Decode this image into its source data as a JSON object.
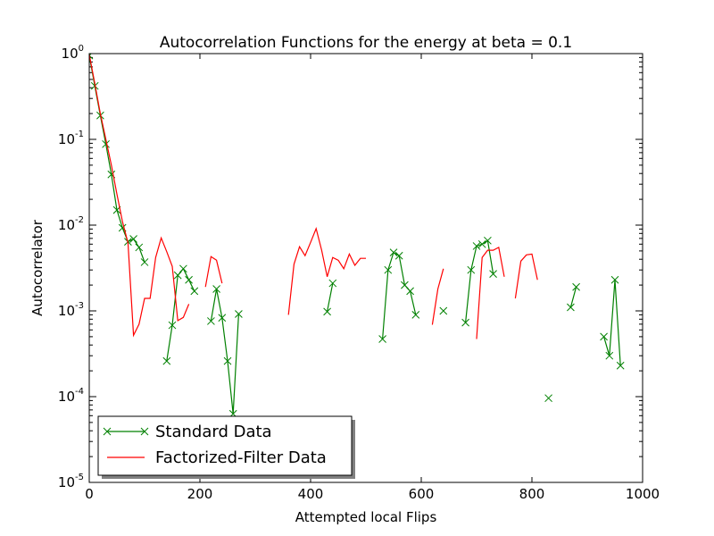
{
  "chart_data": {
    "type": "line",
    "title": "Autocorrelation Functions for the energy at beta = 0.1",
    "xlabel": "Attempted local Flips",
    "ylabel": "Autocorrelator",
    "xlim": [
      0,
      1000
    ],
    "ylim": [
      1e-05,
      1
    ],
    "yscale": "log",
    "x_ticks": [
      "0",
      "200",
      "400",
      "600",
      "800",
      "1000"
    ],
    "y_ticks": [
      {
        "value": 1,
        "base": "10",
        "exp": "0"
      },
      {
        "value": 0.1,
        "base": "10",
        "exp": "-1"
      },
      {
        "value": 0.01,
        "base": "10",
        "exp": "-2"
      },
      {
        "value": 0.001,
        "base": "10",
        "exp": "-3"
      },
      {
        "value": 0.0001,
        "base": "10",
        "exp": "-4"
      },
      {
        "value": 1e-05,
        "base": "10",
        "exp": "-5"
      }
    ],
    "legend_position": "lower-left",
    "colors": {
      "standard": "#008000",
      "factorized": "#ff0000"
    },
    "series": [
      {
        "name": "Standard Data",
        "marker": "x",
        "color": "#008000",
        "segments": [
          [
            [
              0,
              0.95
            ],
            [
              10,
              0.42
            ],
            [
              20,
              0.19
            ],
            [
              30,
              0.088
            ],
            [
              40,
              0.039
            ],
            [
              50,
              0.015
            ],
            [
              60,
              0.0093
            ],
            [
              70,
              0.0064
            ],
            [
              80,
              0.0069
            ],
            [
              90,
              0.0055
            ],
            [
              100,
              0.0037
            ]
          ],
          [
            [
              140,
              0.00026
            ],
            [
              150,
              0.00068
            ],
            [
              160,
              0.0026
            ],
            [
              170,
              0.0031
            ],
            [
              180,
              0.0023
            ],
            [
              190,
              0.0017
            ]
          ],
          [
            [
              220,
              0.00076
            ],
            [
              230,
              0.0018
            ],
            [
              240,
              0.00083
            ],
            [
              250,
              0.00026
            ],
            [
              260,
              6.3e-05
            ],
            [
              270,
              0.00092
            ]
          ],
          [
            [
              430,
              0.00098
            ],
            [
              440,
              0.0021
            ]
          ],
          [
            [
              530,
              0.00047
            ],
            [
              540,
              0.003
            ],
            [
              550,
              0.0048
            ],
            [
              560,
              0.0044
            ],
            [
              570,
              0.002
            ],
            [
              580,
              0.0017
            ],
            [
              590,
              0.0009
            ]
          ],
          [
            [
              640,
              0.001
            ]
          ],
          [
            [
              680,
              0.00073
            ],
            [
              690,
              0.003
            ],
            [
              700,
              0.0057
            ],
            [
              710,
              0.006
            ],
            [
              720,
              0.0066
            ],
            [
              730,
              0.0027
            ]
          ],
          [
            [
              830,
              9.6e-05
            ]
          ],
          [
            [
              870,
              0.0011
            ],
            [
              880,
              0.0019
            ]
          ],
          [
            [
              930,
              0.0005
            ],
            [
              940,
              0.0003
            ],
            [
              950,
              0.0023
            ],
            [
              960,
              0.00023
            ]
          ]
        ]
      },
      {
        "name": "Factorized-Filter Data",
        "marker": "none",
        "color": "#ff0000",
        "segments": [
          [
            [
              0,
              0.98
            ],
            [
              10,
              0.45
            ],
            [
              20,
              0.2
            ],
            [
              30,
              0.1
            ],
            [
              40,
              0.05
            ],
            [
              50,
              0.023
            ],
            [
              60,
              0.011
            ],
            [
              70,
              0.0062
            ],
            [
              80,
              0.00052
            ],
            [
              90,
              0.0007
            ],
            [
              100,
              0.0014
            ],
            [
              110,
              0.0014
            ],
            [
              120,
              0.0042
            ],
            [
              130,
              0.0071
            ],
            [
              140,
              0.0049
            ],
            [
              150,
              0.0033
            ],
            [
              160,
              0.00077
            ],
            [
              170,
              0.00084
            ],
            [
              180,
              0.0012
            ]
          ],
          [
            [
              210,
              0.0019
            ],
            [
              220,
              0.0043
            ],
            [
              230,
              0.0039
            ],
            [
              240,
              0.0021
            ]
          ],
          [
            [
              360,
              0.0009
            ],
            [
              370,
              0.0035
            ],
            [
              380,
              0.0056
            ],
            [
              390,
              0.0044
            ],
            [
              400,
              0.0063
            ],
            [
              410,
              0.0091
            ],
            [
              420,
              0.0051
            ],
            [
              430,
              0.0025
            ],
            [
              440,
              0.0042
            ],
            [
              450,
              0.0039
            ],
            [
              460,
              0.0031
            ],
            [
              470,
              0.0046
            ],
            [
              480,
              0.0034
            ],
            [
              490,
              0.0041
            ],
            [
              500,
              0.0041
            ]
          ],
          [
            [
              620,
              0.00069
            ],
            [
              630,
              0.0018
            ],
            [
              640,
              0.0031
            ]
          ],
          [
            [
              700,
              0.00047
            ],
            [
              710,
              0.0042
            ],
            [
              720,
              0.0051
            ],
            [
              730,
              0.0051
            ],
            [
              740,
              0.0055
            ],
            [
              750,
              0.0025
            ]
          ],
          [
            [
              770,
              0.0014
            ],
            [
              780,
              0.0038
            ],
            [
              790,
              0.0045
            ],
            [
              800,
              0.0046
            ],
            [
              810,
              0.0023
            ]
          ]
        ]
      }
    ]
  }
}
